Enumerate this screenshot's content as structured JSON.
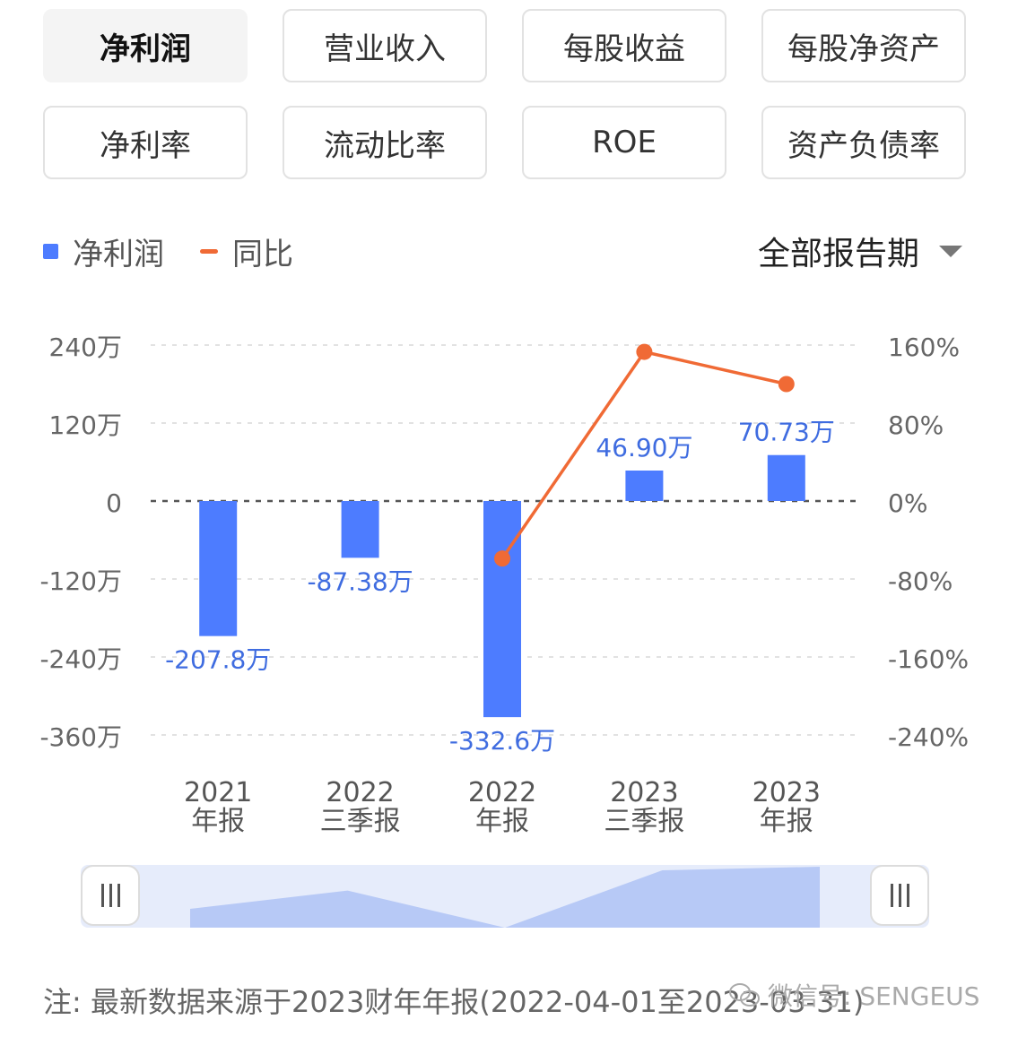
{
  "tabs": [
    {
      "label": "净利润",
      "active": true
    },
    {
      "label": "营业收入",
      "active": false
    },
    {
      "label": "每股收益",
      "active": false
    },
    {
      "label": "每股净资产",
      "active": false
    },
    {
      "label": "净利率",
      "active": false
    },
    {
      "label": "流动比率",
      "active": false
    },
    {
      "label": "ROE",
      "active": false
    },
    {
      "label": "资产负债率",
      "active": false
    }
  ],
  "legend": {
    "bar_label": "净利润",
    "line_label": "同比"
  },
  "period_selector": {
    "label": "全部报告期"
  },
  "chart_data": {
    "type": "bar+line",
    "categories": [
      [
        "2021",
        "年报"
      ],
      [
        "2022",
        "三季报"
      ],
      [
        "2022",
        "年报"
      ],
      [
        "2023",
        "三季报"
      ],
      [
        "2023",
        "年报"
      ]
    ],
    "series": [
      {
        "name": "净利润",
        "type": "bar",
        "axis": "left",
        "values": [
          -207.8,
          -87.38,
          -332.6,
          46.9,
          70.73
        ],
        "labels": [
          "-207.8万",
          "-87.38万",
          "-332.6万",
          "46.90万",
          "70.73万"
        ],
        "color": "#4d7cff"
      },
      {
        "name": "同比",
        "type": "line",
        "axis": "right",
        "values": [
          null,
          null,
          -59,
          153,
          120
        ],
        "color": "#f06a35"
      }
    ],
    "left_axis": {
      "ticks": [
        240,
        120,
        0,
        -120,
        -240,
        -360
      ],
      "tick_labels": [
        "240万",
        "120万",
        "0",
        "-120万",
        "-240万",
        "-360万"
      ],
      "ylim": [
        -360,
        240
      ]
    },
    "right_axis": {
      "ticks": [
        160,
        80,
        0,
        -80,
        -160,
        -240
      ],
      "tick_labels": [
        "160%",
        "80%",
        "0%",
        "-80%",
        "-160%",
        "-240%"
      ],
      "ylim": [
        -240,
        160
      ]
    },
    "grid": true
  },
  "footnote": "注: 最新数据来源于2023财年年报(2022-04-01至2023-03-31)",
  "watermark": "微信号: SENGEUS"
}
